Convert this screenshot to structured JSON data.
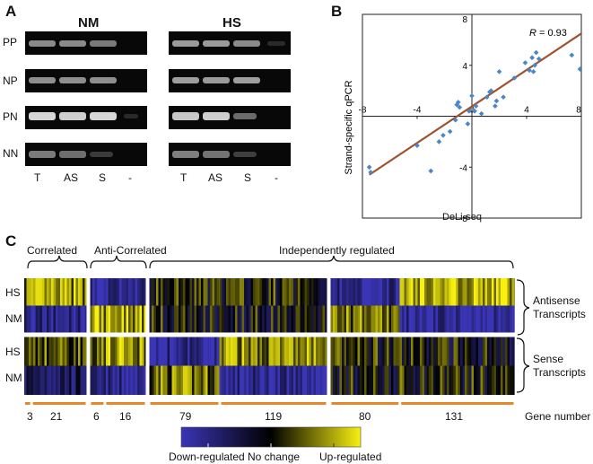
{
  "panel_a": {
    "letter": "A",
    "groups": [
      "NM",
      "HS"
    ],
    "rows": [
      "PP",
      "NP",
      "PN",
      "NN"
    ],
    "lanes": [
      "T",
      "AS",
      "S",
      "-"
    ]
  },
  "panel_b": {
    "letter": "B",
    "r_label": "R",
    "r_value": "= 0.93",
    "xlabel": "DeLi-seq",
    "ylabel": "Strand-specific qPCR"
  },
  "chart_data": {
    "type": "scatter",
    "title": "",
    "xlabel": "DeLi-seq",
    "ylabel": "Strand-specific qPCR",
    "xlim": [
      -8,
      8
    ],
    "ylim": [
      -8,
      8
    ],
    "xticks": [
      "-8",
      "-4",
      "0",
      "4",
      "8"
    ],
    "yticks": [
      "8",
      "4",
      "-4",
      "-8"
    ],
    "annotation": "R = 0.93",
    "fit_line": {
      "x": [
        -7.5,
        8
      ],
      "y": [
        -4.6,
        6.5
      ]
    },
    "points": [
      [
        -7.5,
        -4.0
      ],
      [
        -7.4,
        -4.4
      ],
      [
        -4.0,
        -2.3
      ],
      [
        -3.0,
        -4.3
      ],
      [
        -2.4,
        -2.0
      ],
      [
        -2.1,
        -1.5
      ],
      [
        -1.6,
        -1.2
      ],
      [
        -1.2,
        -0.3
      ],
      [
        -1.1,
        0.9
      ],
      [
        -1.0,
        1.1
      ],
      [
        -0.9,
        0.7
      ],
      [
        -0.3,
        -0.6
      ],
      [
        -0.2,
        0.4
      ],
      [
        0.0,
        1.6
      ],
      [
        0.2,
        0.4
      ],
      [
        0.3,
        0.8
      ],
      [
        0.7,
        0.2
      ],
      [
        1.1,
        1.5
      ],
      [
        1.3,
        1.9
      ],
      [
        1.4,
        2.0
      ],
      [
        1.7,
        0.8
      ],
      [
        1.8,
        1.2
      ],
      [
        2.0,
        3.5
      ],
      [
        2.3,
        1.5
      ],
      [
        3.1,
        3.0
      ],
      [
        3.9,
        4.2
      ],
      [
        4.2,
        3.6
      ],
      [
        4.4,
        4.6
      ],
      [
        4.5,
        3.5
      ],
      [
        4.6,
        4.0
      ],
      [
        4.7,
        5.0
      ],
      [
        4.9,
        4.5
      ],
      [
        7.3,
        4.8
      ],
      [
        7.9,
        3.7
      ]
    ]
  },
  "panel_c": {
    "letter": "C",
    "brackets": [
      "Correlated",
      "Anti-Correlated",
      "Independently regulated"
    ],
    "row_labels": [
      "HS",
      "NM",
      "HS",
      "NM"
    ],
    "right_labels": [
      "Antisense\nTranscripts",
      "Sense\nTranscripts"
    ],
    "gene_counts": [
      "3",
      "21",
      "6",
      "16",
      "79",
      "119",
      "80",
      "131"
    ],
    "gene_number_label": "Gene number",
    "legend": {
      "low": "Down-regulated",
      "mid": "No change",
      "high": "Up-regulated",
      "colors": [
        "#3a35b5",
        "#000000",
        "#f8f010"
      ]
    },
    "accent_color": "#e8872a",
    "fit_color": "#a0522d",
    "point_color": "#4a86c8"
  }
}
